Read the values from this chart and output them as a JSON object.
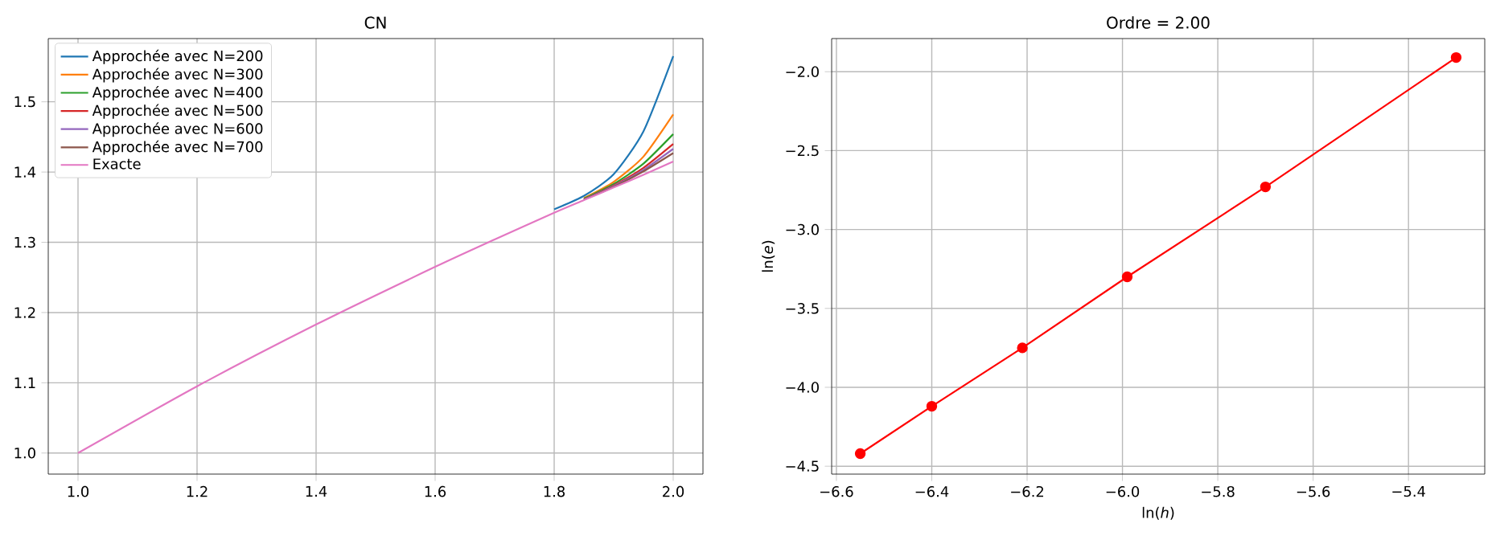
{
  "chart_data": [
    {
      "type": "line",
      "title": "CN",
      "x": [
        1.0,
        1.2,
        1.4,
        1.6,
        1.7,
        1.8,
        1.85,
        1.9,
        1.95,
        2.0
      ],
      "series": [
        {
          "name": "Approchée avec N=200",
          "color": "#1f77b4",
          "values": [
            null,
            null,
            null,
            null,
            null,
            1.347,
            1.366,
            1.397,
            1.458,
            1.565
          ]
        },
        {
          "name": "Approchée avec N=300",
          "color": "#ff7f0e",
          "values": [
            null,
            null,
            null,
            null,
            null,
            null,
            1.363,
            1.386,
            1.422,
            1.482
          ]
        },
        {
          "name": "Approchée avec N=400",
          "color": "#2ca02c",
          "values": [
            null,
            null,
            null,
            null,
            null,
            null,
            1.362,
            1.383,
            1.412,
            1.454
          ]
        },
        {
          "name": "Approchée avec N=500",
          "color": "#d62728",
          "values": [
            null,
            null,
            null,
            null,
            null,
            null,
            1.361,
            1.381,
            1.406,
            1.44
          ]
        },
        {
          "name": "Approchée avec N=600",
          "color": "#9467bd",
          "values": [
            null,
            null,
            null,
            null,
            null,
            null,
            1.361,
            1.38,
            1.403,
            1.433
          ]
        },
        {
          "name": "Approchée avec N=700",
          "color": "#8c564b",
          "values": [
            null,
            null,
            null,
            null,
            null,
            null,
            1.361,
            1.379,
            1.401,
            1.427
          ]
        },
        {
          "name": "Exacte",
          "color": "#e377c2",
          "values": [
            1.0,
            1.095,
            1.183,
            1.265,
            1.304,
            1.342,
            1.36,
            1.378,
            1.396,
            1.415
          ]
        }
      ],
      "xlim": [
        0.95,
        2.05
      ],
      "ylim": [
        0.97,
        1.59
      ],
      "xticks": [
        {
          "value": 1.0,
          "label": "1.0"
        },
        {
          "value": 1.2,
          "label": "1.2"
        },
        {
          "value": 1.4,
          "label": "1.4"
        },
        {
          "value": 1.6,
          "label": "1.6"
        },
        {
          "value": 1.8,
          "label": "1.8"
        },
        {
          "value": 2.0,
          "label": "2.0"
        }
      ],
      "yticks": [
        {
          "value": 1.0,
          "label": "1.0"
        },
        {
          "value": 1.1,
          "label": "1.1"
        },
        {
          "value": 1.2,
          "label": "1.2"
        },
        {
          "value": 1.3,
          "label": "1.3"
        },
        {
          "value": 1.4,
          "label": "1.4"
        },
        {
          "value": 1.5,
          "label": "1.5"
        }
      ],
      "grid": true,
      "legend": "top left"
    },
    {
      "type": "line",
      "title": "Ordre = 2.00",
      "xlabel": "ln(*h*)",
      "ylabel": "ln(*e*)",
      "x": [
        -6.55,
        -6.4,
        -6.21,
        -5.99,
        -5.7,
        -5.3
      ],
      "values": [
        -4.42,
        -4.12,
        -3.75,
        -3.3,
        -2.73,
        -1.91
      ],
      "color": "#ff0000",
      "marker": "circle",
      "xlim": [
        -6.61,
        -5.24
      ],
      "ylim": [
        -4.55,
        -1.79
      ],
      "xticks": [
        {
          "value": -6.6,
          "label": "−6.6"
        },
        {
          "value": -6.4,
          "label": "−6.4"
        },
        {
          "value": -6.2,
          "label": "−6.2"
        },
        {
          "value": -6.0,
          "label": "−6.0"
        },
        {
          "value": -5.8,
          "label": "−5.8"
        },
        {
          "value": -5.6,
          "label": "−5.6"
        },
        {
          "value": -5.4,
          "label": "−5.4"
        }
      ],
      "yticks": [
        {
          "value": -4.5,
          "label": "−4.5"
        },
        {
          "value": -4.0,
          "label": "−4.0"
        },
        {
          "value": -3.5,
          "label": "−3.5"
        },
        {
          "value": -3.0,
          "label": "−3.0"
        },
        {
          "value": -2.5,
          "label": "−2.5"
        },
        {
          "value": -2.0,
          "label": "−2.0"
        }
      ],
      "grid": true
    }
  ]
}
